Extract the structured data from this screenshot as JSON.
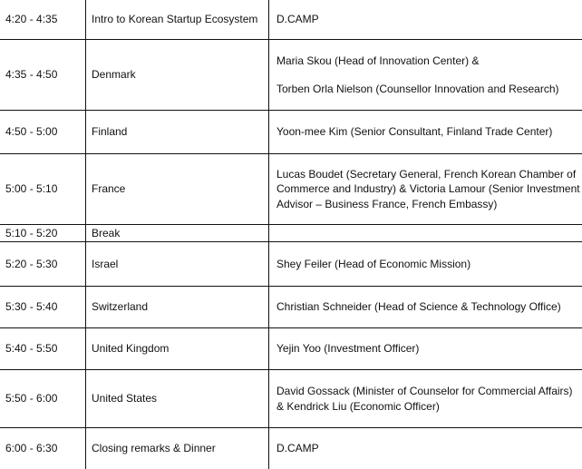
{
  "rows": [
    {
      "time": "4:20 - 4:35",
      "topic": "Intro to Korean Startup Ecosystem",
      "speaker": [
        "D.CAMP"
      ]
    },
    {
      "time": "4:35 - 4:50",
      "topic": "Denmark",
      "speaker": [
        "Maria Skou (Head of Innovation Center) &",
        "Torben Orla Nielson (Counsellor Innovation and Research)"
      ]
    },
    {
      "time": "4:50 - 5:00",
      "topic": "Finland",
      "speaker": [
        "Yoon-mee Kim (Senior Consultant, Finland Trade Center)"
      ]
    },
    {
      "time": "5:00 - 5:10",
      "topic": "France",
      "speaker": [
        "Lucas Boudet (Secretary General, French Korean Chamber of Commerce and Industry) & Victoria Lamour (Senior Investment Advisor – Business France, French Embassy)"
      ]
    },
    {
      "time": "5:10 - 5:20",
      "topic": "Break",
      "speaker": [
        ""
      ]
    },
    {
      "time": "5:20 - 5:30",
      "topic": "Israel",
      "speaker": [
        "Shey Feiler (Head of Economic Mission)"
      ]
    },
    {
      "time": "5:30 - 5:40",
      "topic": "Switzerland",
      "speaker": [
        "Christian Schneider (Head of Science & Technology Office)"
      ]
    },
    {
      "time": "5:40 - 5:50",
      "topic": "United Kingdom",
      "speaker": [
        "Yejin Yoo (Investment Officer)"
      ]
    },
    {
      "time": "5:50 - 6:00",
      "topic": "United States",
      "speaker": [
        "David Gossack (Minister of Counselor for Commercial Affairs) & Kendrick Liu (Economic Officer)"
      ]
    },
    {
      "time": "6:00 - 6:30",
      "topic": "Closing remarks & Dinner",
      "speaker": [
        "D.CAMP"
      ]
    }
  ]
}
